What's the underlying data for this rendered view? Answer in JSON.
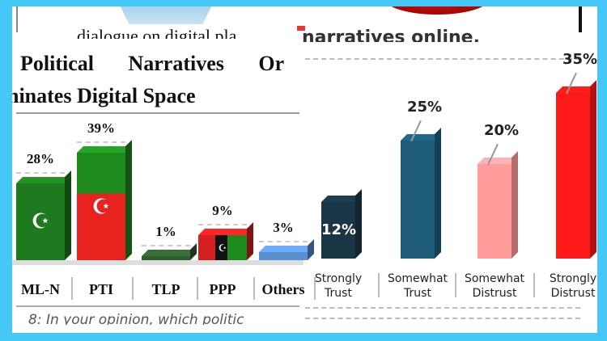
{
  "left_panel": {
    "header_fragment": "dialogue on digital pla",
    "title_line1_words": [
      "Political",
      "Narratives",
      "Or"
    ],
    "title_line2": "ninates Digital Space",
    "footer_fragment": "8: In your opinion, which politic"
  },
  "right_panel": {
    "header_fragment": "narratives online."
  },
  "chart_data": [
    {
      "type": "bar",
      "title": "Political Narratives ... Dominates Digital Space",
      "categories": [
        "ML-N",
        "PTI",
        "TLP",
        "PPP",
        "Others"
      ],
      "values": [
        28,
        39,
        1,
        9,
        3
      ],
      "labels": [
        "28%",
        "39%",
        "1%",
        "9%",
        "3%"
      ],
      "colors": [
        "#1e7a1e",
        "#e8231f",
        "#2f5d2f",
        "#d42020",
        "#5b8fd0"
      ],
      "unit": "%"
    },
    {
      "type": "bar",
      "title": "",
      "categories": [
        "Strongly Trust",
        "Somewhat Trust",
        "Somewhat Distrust",
        "Strongly Distrust"
      ],
      "category_lines": [
        [
          "Strongly",
          "Trust"
        ],
        [
          "Somewhat",
          "Trust"
        ],
        [
          "Somewhat",
          "Distrust"
        ],
        [
          "Strongly",
          "Distrust"
        ]
      ],
      "values": [
        12,
        25,
        20,
        35
      ],
      "labels": [
        "12%",
        "25%",
        "20%",
        "35%"
      ],
      "colors": [
        "#1a3545",
        "#1d5b78",
        "#ff9c9c",
        "#ff1a1a"
      ],
      "unit": "%"
    }
  ]
}
